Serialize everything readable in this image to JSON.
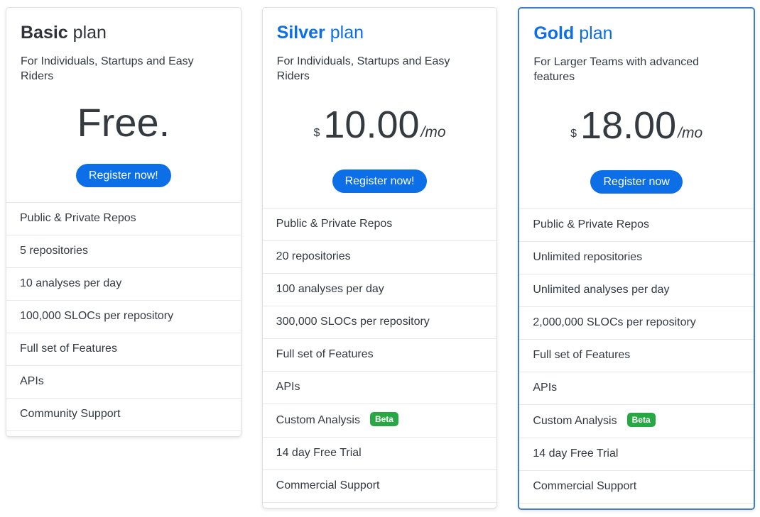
{
  "colors": {
    "accent_blue": "#0c6fe8",
    "highlight_border": "#3d7ec9",
    "badge_green": "#28a745",
    "heading_dark": "#2d3339",
    "price_dark": "#343a40",
    "text": "#333a41",
    "divider": "#e7e7e7",
    "card_border": "#e0e0e0"
  },
  "plans": [
    {
      "id": "basic",
      "title_strong": "Basic",
      "title_rest": "plan",
      "subtitle": "For Individuals, Startups and Easy Riders",
      "price": {
        "text": "Free."
      },
      "button_label": "Register now!",
      "features": [
        {
          "label": "Public & Private Repos"
        },
        {
          "label": "5 repositories"
        },
        {
          "label": "10 analyses per day"
        },
        {
          "label": "100,000 SLOCs per repository"
        },
        {
          "label": "Full set of Features"
        },
        {
          "label": "APIs"
        },
        {
          "label": "Community Support"
        }
      ],
      "highlighted": false
    },
    {
      "id": "silver",
      "title_strong": "Silver",
      "title_rest": "plan",
      "subtitle": "For Individuals, Startups and Easy Riders",
      "price": {
        "currency": "$",
        "amount": "10.00",
        "period": "/mo"
      },
      "button_label": "Register now!",
      "features": [
        {
          "label": "Public & Private Repos"
        },
        {
          "label": "20 repositories"
        },
        {
          "label": "100 analyses per day"
        },
        {
          "label": "300,000 SLOCs per repository"
        },
        {
          "label": "Full set of Features"
        },
        {
          "label": "APIs"
        },
        {
          "label": "Custom Analysis",
          "badge": "Beta"
        },
        {
          "label": "14 day Free Trial"
        },
        {
          "label": "Commercial Support"
        }
      ],
      "highlighted": false
    },
    {
      "id": "gold",
      "title_strong": "Gold",
      "title_rest": "plan",
      "subtitle": "For Larger Teams with advanced features",
      "price": {
        "currency": "$",
        "amount": "18.00",
        "period": "/mo"
      },
      "button_label": "Register now",
      "features": [
        {
          "label": "Public & Private Repos"
        },
        {
          "label": "Unlimited repositories"
        },
        {
          "label": "Unlimited analyses per day"
        },
        {
          "label": "2,000,000 SLOCs per repository"
        },
        {
          "label": "Full set of Features"
        },
        {
          "label": "APIs"
        },
        {
          "label": "Custom Analysis",
          "badge": "Beta"
        },
        {
          "label": "14 day Free Trial"
        },
        {
          "label": "Commercial Support"
        }
      ],
      "highlighted": true
    }
  ]
}
